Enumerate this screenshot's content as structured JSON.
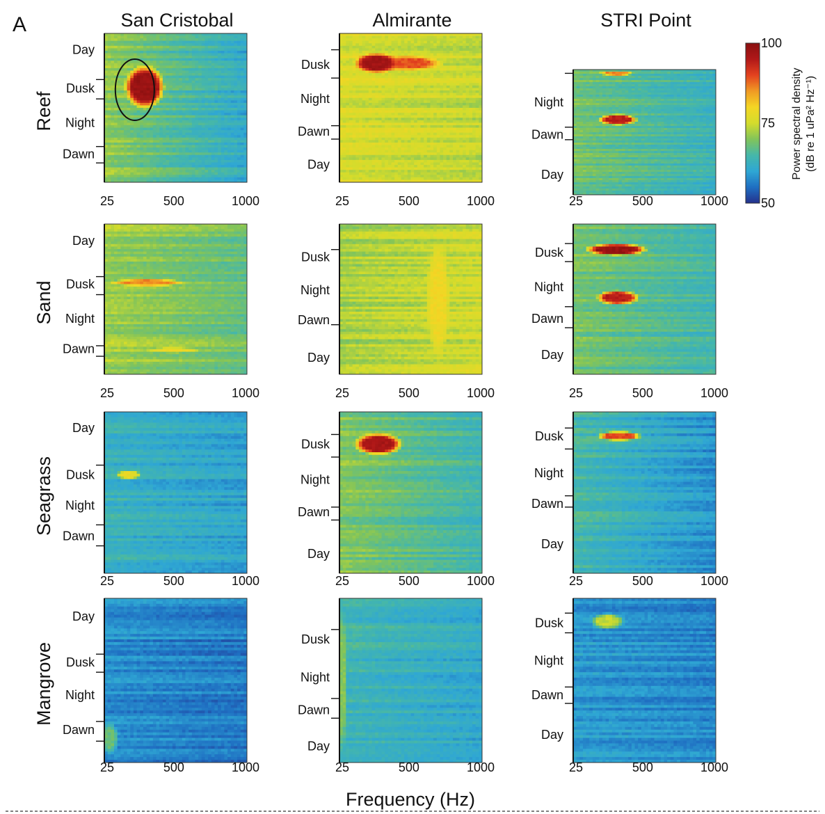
{
  "figure": {
    "panel_letter": "A",
    "x_axis_title": "Frequency (Hz)"
  },
  "colorbar": {
    "title_line1": "Power spectral density",
    "title_line2": "(dB re 1 uPa² Hz⁻¹)",
    "ticks": [
      100,
      75,
      50
    ],
    "range": [
      50,
      100
    ],
    "colormap": "jet",
    "colors": [
      "#24318c",
      "#1f6fc2",
      "#2fa7d4",
      "#46b7a9",
      "#82c45a",
      "#d4dc2c",
      "#f4d624",
      "#f09a24",
      "#e3421f",
      "#b01818",
      "#8a1010"
    ]
  },
  "chart_data": {
    "type": "heatmap",
    "x_axis": {
      "label": "Frequency (Hz)",
      "range": [
        25,
        1000
      ],
      "ticks": [
        25,
        500,
        1000
      ]
    },
    "z_range": [
      50,
      100
    ],
    "sites": [
      "San Cristobal",
      "Almirante",
      "STRI Point"
    ],
    "habitats": [
      "Reef",
      "Sand",
      "Seagrass",
      "Mangrove"
    ],
    "panels": [
      {
        "habitat": "Reef",
        "site": "San Cristobal",
        "periods": [
          {
            "label": "Day",
            "center": 0.11
          },
          {
            "label": "Dusk",
            "center": 0.37
          },
          {
            "label": "Night",
            "center": 0.6
          },
          {
            "label": "Dawn",
            "center": 0.81
          }
        ],
        "breaks": [
          0.31,
          0.44,
          0.76,
          0.87
        ],
        "base_level": 71,
        "freq_rolloff": 10,
        "hot": [
          {
            "f": 300,
            "w": 140,
            "t": 0.36,
            "h": 0.3,
            "level": 98
          }
        ],
        "annotation": "ellipse"
      },
      {
        "habitat": "Reef",
        "site": "Almirante",
        "periods": [
          {
            "label": "Dusk",
            "center": 0.21
          },
          {
            "label": "Night",
            "center": 0.44
          },
          {
            "label": "Dawn",
            "center": 0.66
          },
          {
            "label": "Day",
            "center": 0.88
          }
        ],
        "breaks": [
          0.11,
          0.3,
          0.62,
          0.71
        ],
        "base_level": 76,
        "freq_rolloff": 2,
        "hot": [
          {
            "f": 280,
            "w": 160,
            "t": 0.2,
            "h": 0.14,
            "level": 97
          },
          {
            "f": 480,
            "w": 260,
            "t": 0.2,
            "h": 0.1,
            "level": 89
          }
        ]
      },
      {
        "habitat": "Reef",
        "site": "STRI Point",
        "periods": [
          {
            "label": "Night",
            "center": 0.26
          },
          {
            "label": "Dawn",
            "center": 0.52
          },
          {
            "label": "Day",
            "center": 0.84
          }
        ],
        "breaks": [
          0.03,
          0.46,
          0.56
        ],
        "base_level": 69,
        "freq_rolloff": 6,
        "hot": [
          {
            "f": 330,
            "w": 140,
            "t": 0.4,
            "h": 0.09,
            "level": 94
          },
          {
            "f": 320,
            "w": 120,
            "t": 0.03,
            "h": 0.04,
            "level": 86
          }
        ]
      },
      {
        "habitat": "Sand",
        "site": "San Cristobal",
        "periods": [
          {
            "label": "Day",
            "center": 0.11
          },
          {
            "label": "Dusk",
            "center": 0.4
          },
          {
            "label": "Night",
            "center": 0.63
          },
          {
            "label": "Dawn",
            "center": 0.83
          }
        ],
        "breaks": [
          0.35,
          0.47,
          0.81,
          0.88
        ],
        "base_level": 72,
        "freq_rolloff": 4,
        "hot": [
          {
            "f": 320,
            "w": 260,
            "t": 0.39,
            "h": 0.05,
            "level": 86
          },
          {
            "f": 500,
            "w": 180,
            "t": 0.84,
            "h": 0.04,
            "level": 79
          }
        ]
      },
      {
        "habitat": "Sand",
        "site": "Almirante",
        "periods": [
          {
            "label": "Dusk",
            "center": 0.22
          },
          {
            "label": "Night",
            "center": 0.44
          },
          {
            "label": "Dawn",
            "center": 0.64
          },
          {
            "label": "Day",
            "center": 0.89
          }
        ],
        "breaks": [
          0.17,
          0.67
        ],
        "base_level": 72,
        "freq_rolloff": -3,
        "hot": [
          {
            "f": 700,
            "w": 80,
            "t": 0.5,
            "h": 0.8,
            "level": 79
          }
        ]
      },
      {
        "habitat": "Sand",
        "site": "STRI Point",
        "periods": [
          {
            "label": "Dusk",
            "center": 0.19
          },
          {
            "label": "Night",
            "center": 0.42
          },
          {
            "label": "Dawn",
            "center": 0.63
          },
          {
            "label": "Day",
            "center": 0.87
          }
        ],
        "breaks": [
          0.13,
          0.25,
          0.55,
          0.69
        ],
        "base_level": 69,
        "freq_rolloff": 5,
        "hot": [
          {
            "f": 320,
            "w": 220,
            "t": 0.17,
            "h": 0.08,
            "level": 98
          },
          {
            "f": 330,
            "w": 150,
            "t": 0.49,
            "h": 0.1,
            "level": 94
          }
        ]
      },
      {
        "habitat": "Seagrass",
        "site": "San Cristobal",
        "periods": [
          {
            "label": "Day",
            "center": 0.1
          },
          {
            "label": "Dusk",
            "center": 0.39
          },
          {
            "label": "Night",
            "center": 0.58
          },
          {
            "label": "Dawn",
            "center": 0.77
          }
        ],
        "breaks": [
          0.33,
          0.7,
          0.83
        ],
        "base_level": 63,
        "freq_rolloff": 3,
        "hot": [
          {
            "f": 190,
            "w": 90,
            "t": 0.39,
            "h": 0.06,
            "level": 78
          }
        ]
      },
      {
        "habitat": "Seagrass",
        "site": "Almirante",
        "periods": [
          {
            "label": "Dusk",
            "center": 0.2
          },
          {
            "label": "Night",
            "center": 0.42
          },
          {
            "label": "Dawn",
            "center": 0.62
          },
          {
            "label": "Day",
            "center": 0.88
          }
        ],
        "breaks": [
          0.14,
          0.28,
          0.59,
          0.67
        ],
        "base_level": 70,
        "freq_rolloff": 6,
        "hot": [
          {
            "f": 290,
            "w": 170,
            "t": 0.2,
            "h": 0.14,
            "level": 96
          }
        ]
      },
      {
        "habitat": "Seagrass",
        "site": "STRI Point",
        "periods": [
          {
            "label": "Dusk",
            "center": 0.15
          },
          {
            "label": "Night",
            "center": 0.38
          },
          {
            "label": "Dawn",
            "center": 0.57
          },
          {
            "label": "Day",
            "center": 0.82
          }
        ],
        "breaks": [
          0.1,
          0.23,
          0.52,
          0.59
        ],
        "base_level": 65,
        "freq_rolloff": 7,
        "hot": [
          {
            "f": 340,
            "w": 160,
            "t": 0.15,
            "h": 0.06,
            "level": 90
          }
        ]
      },
      {
        "habitat": "Mangrove",
        "site": "San Cristobal",
        "periods": [
          {
            "label": "Day",
            "center": 0.11
          },
          {
            "label": "Dusk",
            "center": 0.39
          },
          {
            "label": "Night",
            "center": 0.59
          },
          {
            "label": "Dawn",
            "center": 0.8
          }
        ],
        "breaks": [
          0.34,
          0.45,
          0.75,
          0.87
        ],
        "base_level": 58,
        "freq_rolloff": 2,
        "hot": [
          {
            "f": 60,
            "w": 60,
            "t": 0.85,
            "h": 0.2,
            "level": 68
          }
        ]
      },
      {
        "habitat": "Mangrove",
        "site": "Almirante",
        "periods": [
          {
            "label": "Dusk",
            "center": 0.25
          },
          {
            "label": "Night",
            "center": 0.48
          },
          {
            "label": "Dawn",
            "center": 0.68
          },
          {
            "label": "Day",
            "center": 0.9
          }
        ],
        "breaks": [
          0.19,
          0.61,
          0.73
        ],
        "base_level": 64,
        "freq_rolloff": 3,
        "hot": [
          {
            "f": 40,
            "w": 40,
            "t": 0.5,
            "h": 0.9,
            "level": 70
          }
        ]
      },
      {
        "habitat": "Mangrove",
        "site": "STRI Point",
        "periods": [
          {
            "label": "Dusk",
            "center": 0.15
          },
          {
            "label": "Night",
            "center": 0.38
          },
          {
            "label": "Dawn",
            "center": 0.59
          },
          {
            "label": "Day",
            "center": 0.83
          }
        ],
        "breaks": [
          0.09,
          0.21,
          0.54,
          0.64
        ],
        "base_level": 59,
        "freq_rolloff": 2,
        "hot": [
          {
            "f": 260,
            "w": 120,
            "t": 0.14,
            "h": 0.1,
            "level": 74
          }
        ]
      }
    ]
  }
}
